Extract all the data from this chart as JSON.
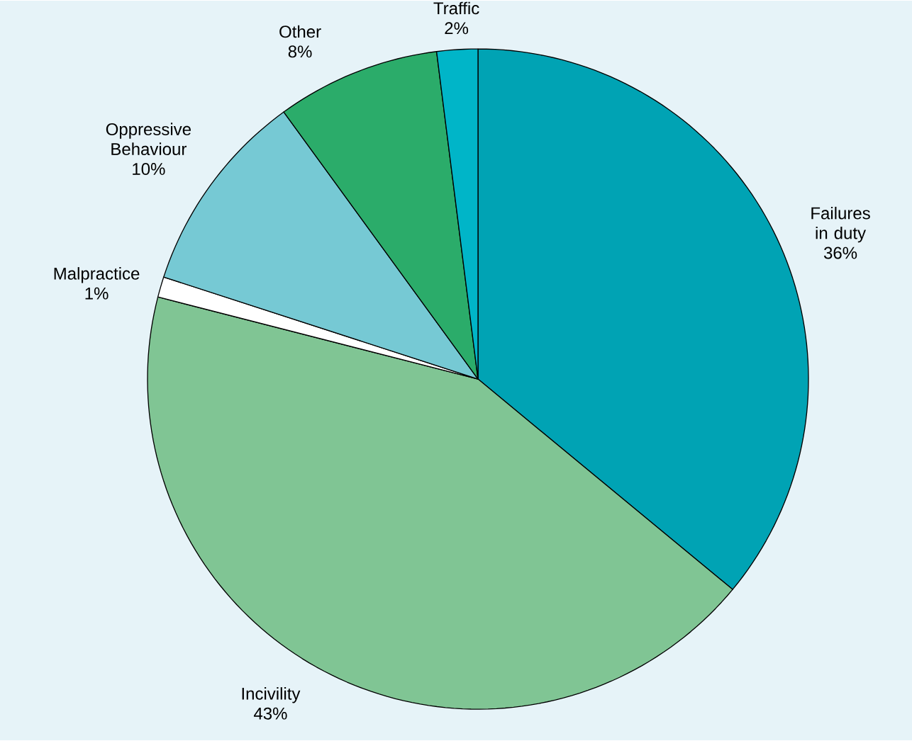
{
  "chart_data": {
    "type": "pie",
    "categories": [
      "Failures in duty",
      "Incivility",
      "Malpractice",
      "Oppressive Behaviour",
      "Other",
      "Traffic"
    ],
    "values": [
      36,
      43,
      1,
      10,
      8,
      2
    ],
    "value_labels": [
      "36%",
      "43%",
      "1%",
      "10%",
      "8%",
      "2%"
    ],
    "colors": [
      "#00a3b4",
      "#80c594",
      "#ffffff",
      "#76c9d4",
      "#2bac6a",
      "#00b5c8"
    ]
  }
}
